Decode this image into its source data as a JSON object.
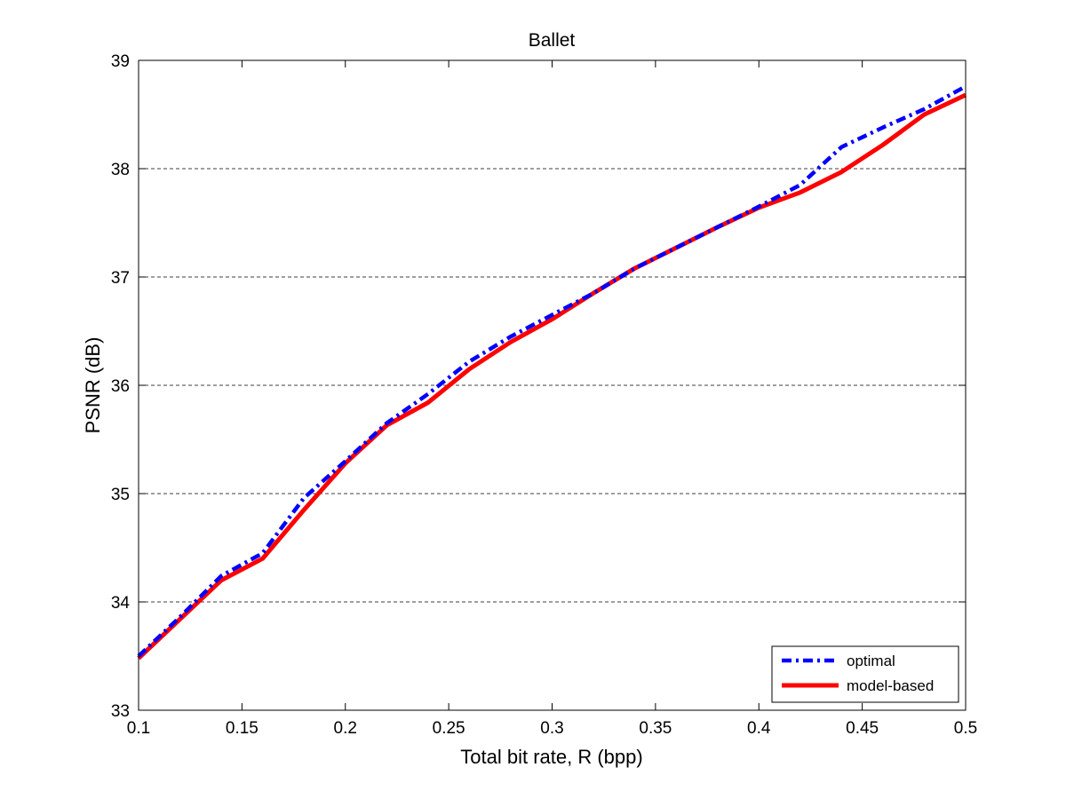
{
  "chart_data": {
    "type": "line",
    "title": "Ballet",
    "xlabel": "Total bit rate, R (bpp)",
    "ylabel": "PSNR (dB)",
    "xlim": [
      0.1,
      0.5
    ],
    "ylim": [
      33,
      39
    ],
    "xticks": [
      "0.1",
      "0.15",
      "0.2",
      "0.25",
      "0.3",
      "0.35",
      "0.4",
      "0.45",
      "0.5"
    ],
    "yticks": [
      "33",
      "34",
      "35",
      "36",
      "37",
      "38",
      "39"
    ],
    "grid": "horizontal dashed",
    "legend_position": "bottom-right",
    "series": [
      {
        "name": "optimal",
        "color": "#0000ff",
        "style": "dash-dot",
        "x": [
          0.1,
          0.12,
          0.14,
          0.16,
          0.18,
          0.2,
          0.22,
          0.24,
          0.26,
          0.28,
          0.3,
          0.32,
          0.34,
          0.36,
          0.38,
          0.4,
          0.42,
          0.44,
          0.46,
          0.48,
          0.5
        ],
        "y": [
          33.5,
          33.86,
          34.24,
          34.45,
          34.96,
          35.3,
          35.65,
          35.92,
          36.22,
          36.45,
          36.65,
          36.85,
          37.08,
          37.27,
          37.46,
          37.65,
          37.85,
          38.2,
          38.38,
          38.55,
          38.76
        ]
      },
      {
        "name": "model-based",
        "color": "#ff0000",
        "style": "solid",
        "x": [
          0.1,
          0.12,
          0.14,
          0.16,
          0.18,
          0.2,
          0.22,
          0.24,
          0.26,
          0.28,
          0.3,
          0.32,
          0.34,
          0.36,
          0.38,
          0.4,
          0.42,
          0.44,
          0.46,
          0.48,
          0.5
        ],
        "y": [
          33.48,
          33.84,
          34.2,
          34.4,
          34.85,
          35.28,
          35.63,
          35.84,
          36.15,
          36.4,
          36.61,
          36.85,
          37.08,
          37.27,
          37.46,
          37.64,
          37.78,
          37.97,
          38.22,
          38.5,
          38.68
        ]
      }
    ]
  }
}
